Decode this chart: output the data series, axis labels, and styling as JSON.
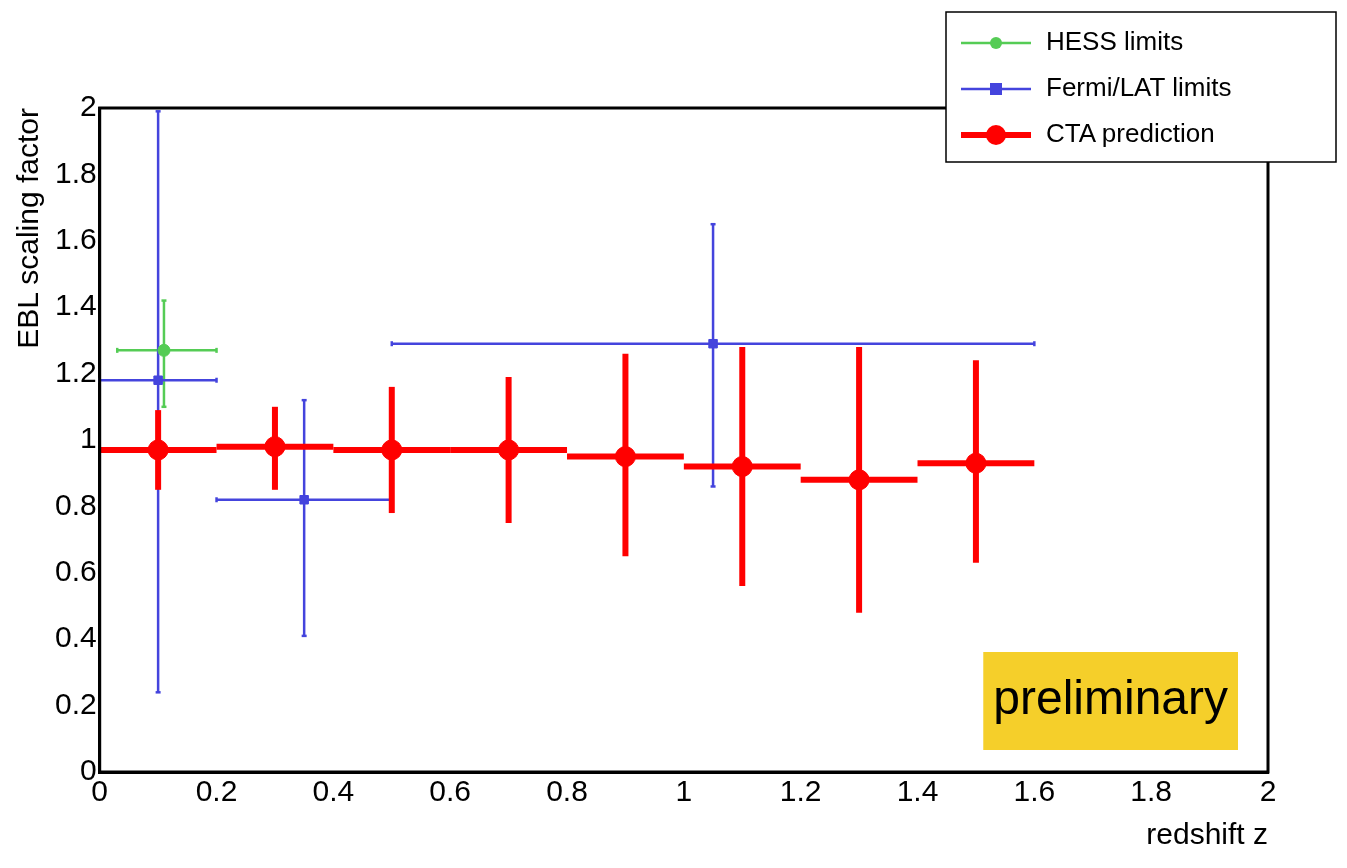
{
  "chart_data": {
    "type": "scatter",
    "xlabel": "redshift z",
    "ylabel": "EBL scaling factor",
    "xlim": [
      0,
      2
    ],
    "xticks": [
      0,
      0.2,
      0.4,
      0.6,
      0.8,
      1,
      1.2,
      1.4,
      1.6,
      1.8,
      2
    ],
    "ylim": [
      0,
      2
    ],
    "yticks": [
      0,
      0.2,
      0.4,
      0.6,
      0.8,
      1,
      1.2,
      1.4,
      1.6,
      1.8,
      2
    ],
    "grid": false,
    "legend": "top right",
    "annotations": [
      "preliminary"
    ],
    "series": [
      {
        "name": "HESS limits",
        "color": "#55cc55",
        "marker": "circle",
        "x": [
          0.11
        ],
        "values": [
          1.27
        ],
        "errors": [
          [
            1.1,
            1.42
          ]
        ],
        "xerrors": [
          [
            0.03,
            0.2
          ]
        ]
      },
      {
        "name": "Fermi/LAT limits",
        "color": "#4444dd",
        "marker": "square",
        "x": [
          0.1,
          0.35,
          1.05
        ],
        "values": [
          1.18,
          0.82,
          1.29
        ],
        "errors": [
          [
            0.24,
            1.99
          ],
          [
            0.41,
            1.12
          ],
          [
            0.86,
            1.65
          ]
        ],
        "xerrors": [
          [
            0,
            0.2
          ],
          [
            0.2,
            0.5
          ],
          [
            0.5,
            1.6
          ]
        ]
      },
      {
        "name": "CTA prediction",
        "color": "#ff0000",
        "marker": "circle",
        "x": [
          0.1,
          0.3,
          0.5,
          0.7,
          0.9,
          1.1,
          1.3,
          1.5
        ],
        "values": [
          0.97,
          0.98,
          0.97,
          0.97,
          0.95,
          0.92,
          0.88,
          0.93
        ],
        "errors": [
          [
            0.85,
            1.09
          ],
          [
            0.85,
            1.1
          ],
          [
            0.78,
            1.16
          ],
          [
            0.75,
            1.19
          ],
          [
            0.65,
            1.26
          ],
          [
            0.56,
            1.28
          ],
          [
            0.48,
            1.28
          ],
          [
            0.63,
            1.24
          ]
        ],
        "xerrors": [
          0.1,
          0.1,
          0.1,
          0.1,
          0.1,
          0.1,
          0.1,
          0.1
        ]
      }
    ]
  }
}
